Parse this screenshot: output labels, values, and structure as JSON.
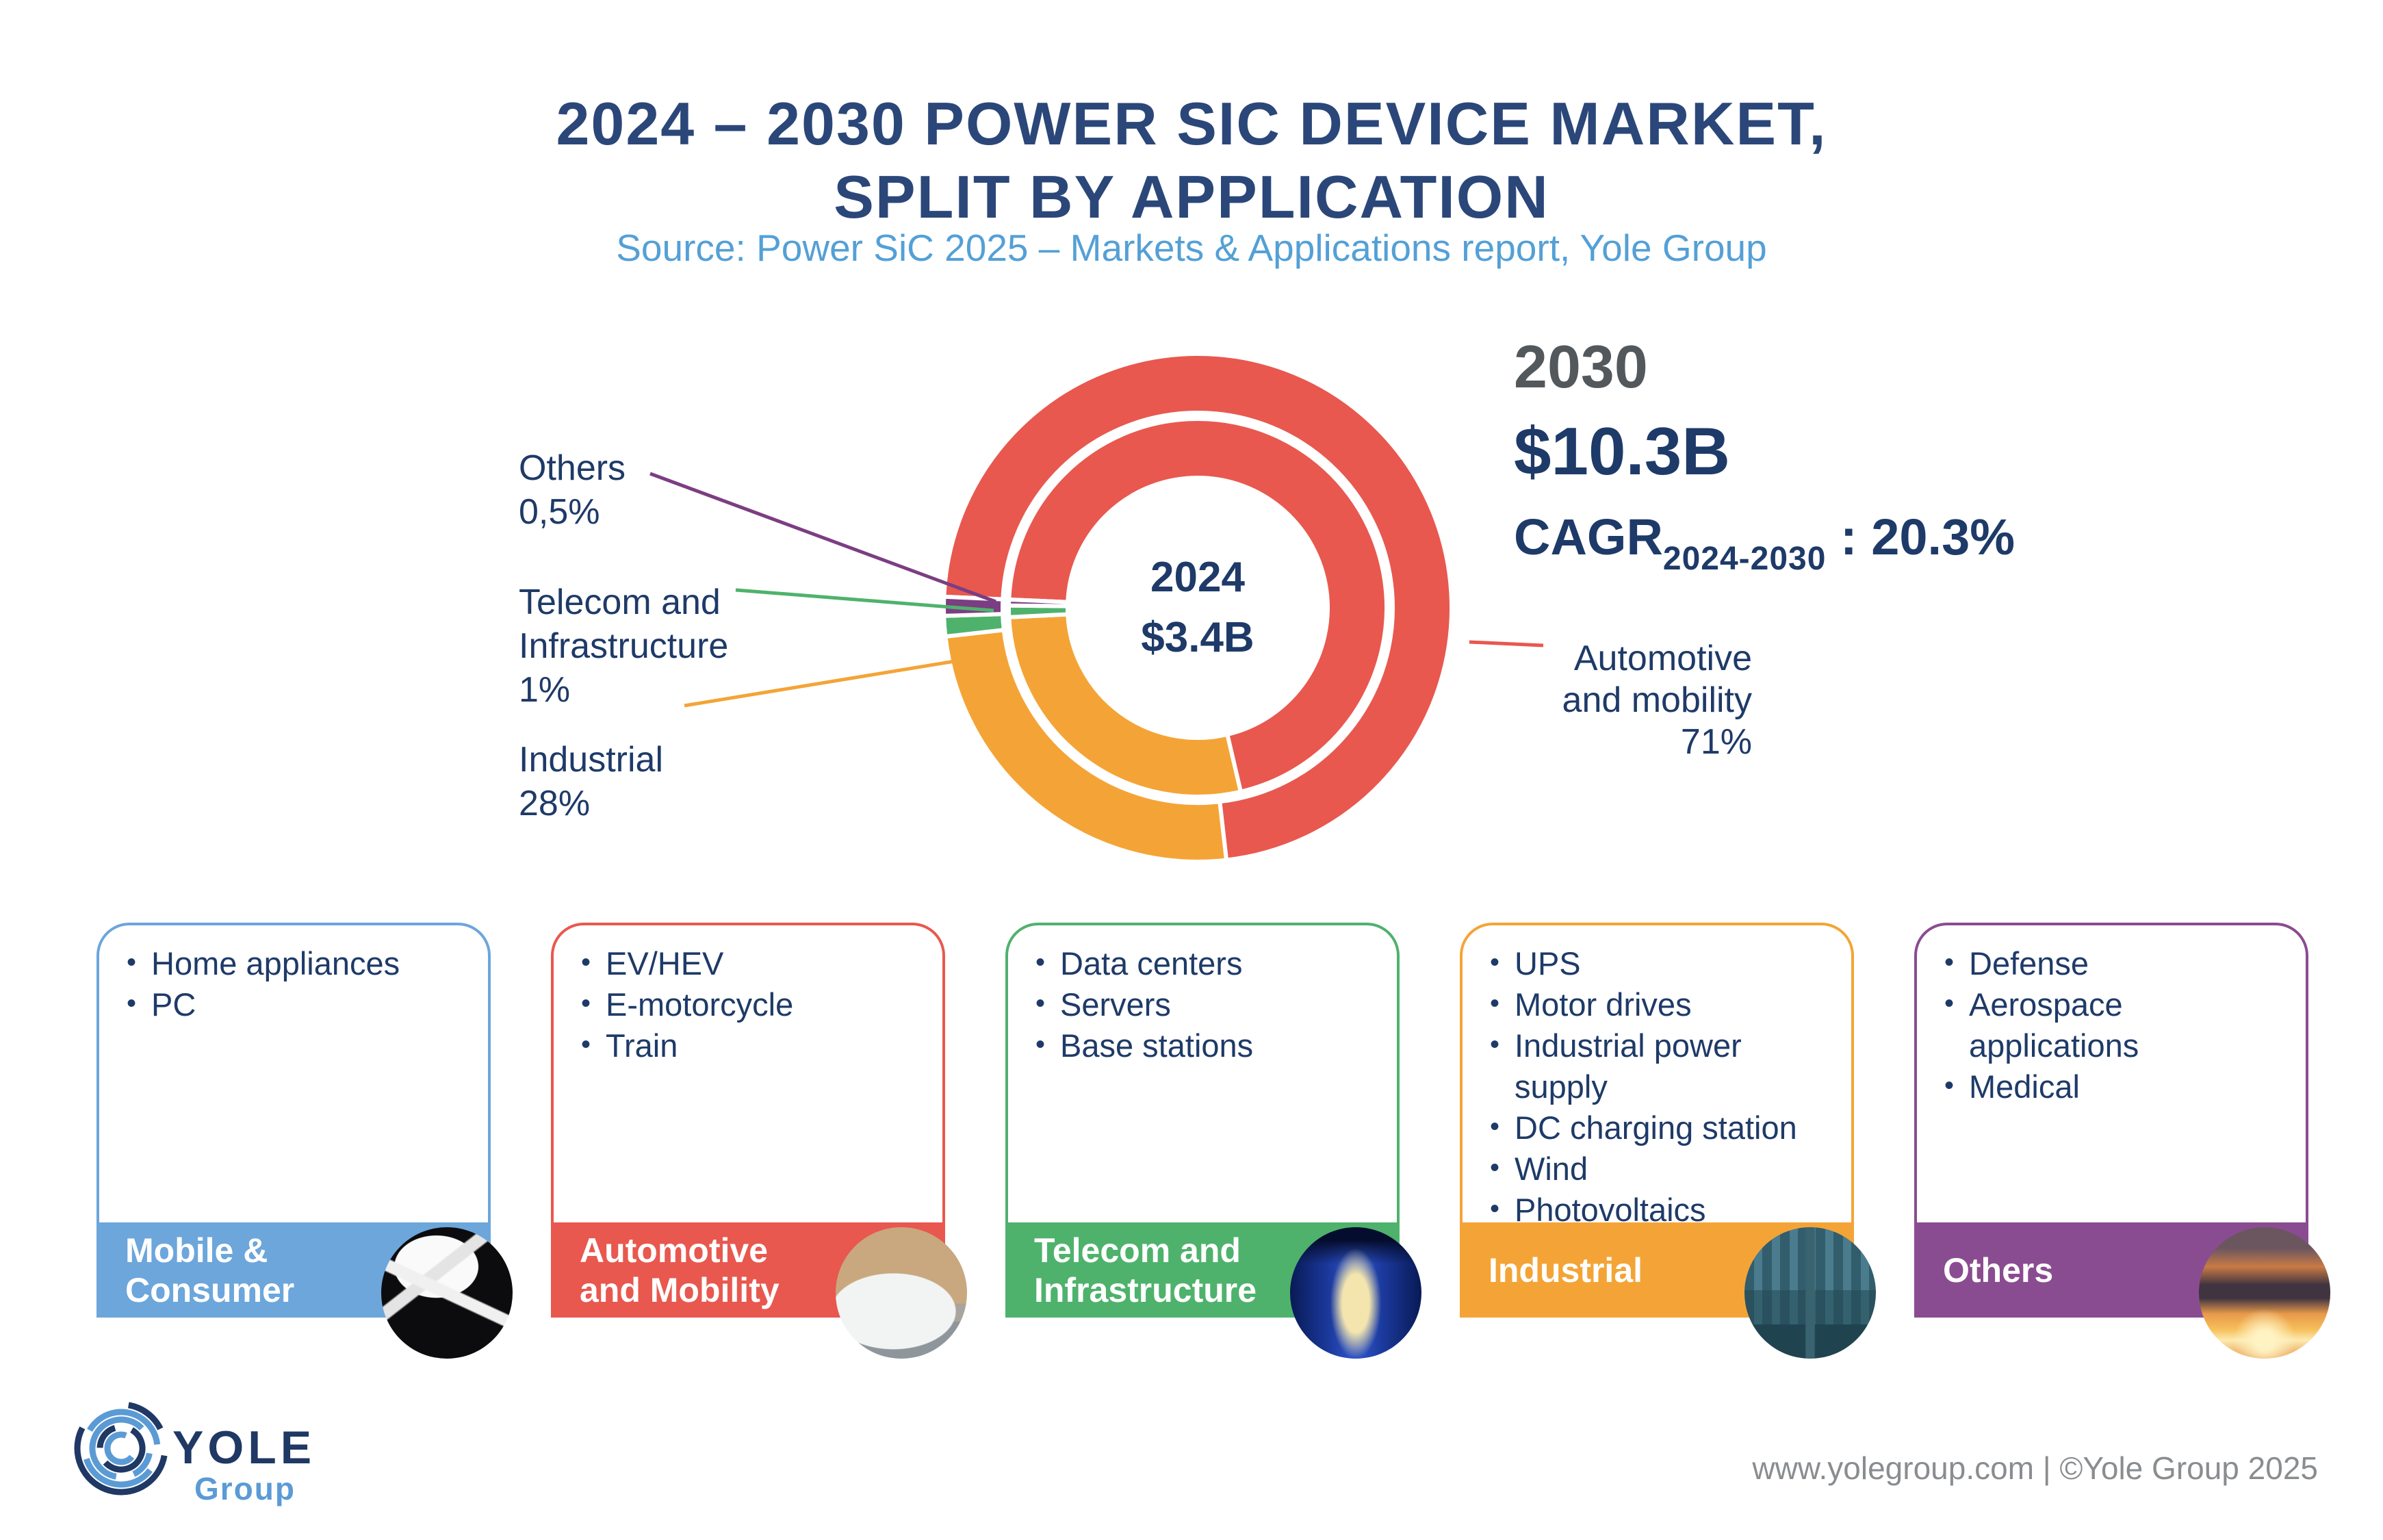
{
  "header": {
    "title": "2024 – 2030 POWER SIC DEVICE MARKET,\nSPLIT BY APPLICATION",
    "subtitle": "Source: Power SiC 2025 – Markets & Applications report, Yole Group"
  },
  "chart_data": {
    "type": "pie",
    "variant": "double_ring_donut",
    "clockwise": true,
    "start_angle_deg": 272.5,
    "categories": [
      "Automotive and mobility",
      "Industrial",
      "Telecom and Infrastructure",
      "Others"
    ],
    "segment_colors": [
      "#E8584F",
      "#F4A436",
      "#4FB26C",
      "#7B3E82"
    ],
    "rings": [
      {
        "id": "outer",
        "year": "2030",
        "total": "$10.3B",
        "values_pct": [
          72.5,
          25.0,
          1.3,
          1.2
        ],
        "note": "2030 split not labeled in figure; estimated from arc lengths"
      },
      {
        "id": "inner",
        "year": "2024",
        "total": "$3.4B",
        "values_pct": [
          71,
          28,
          1,
          0.5
        ]
      }
    ],
    "cagr": "20.3%",
    "legend_position": "callout-labels"
  },
  "center_label": {
    "year": "2024",
    "value": "$3.4B"
  },
  "stats": {
    "year": "2030",
    "value": "$10.3B",
    "cagr_label": "CAGR",
    "cagr_subscript": "2024-2030",
    "cagr_separator": " : ",
    "cagr_value": "20.3%"
  },
  "callouts": {
    "others": "Others\n0,5%",
    "telecom": "Telecom and\nInfrastructure\n1%",
    "industrial": "Industrial\n28%",
    "automotive": "Automotive\nand mobility\n71%"
  },
  "cards": [
    {
      "id": "mobile-consumer",
      "title": "Mobile &\nConsumer",
      "color": "#6CA6DB",
      "items": [
        "Home appliances",
        "PC"
      ],
      "photo": "phone-charger-photo"
    },
    {
      "id": "automotive-mobility",
      "title": "Automotive\nand Mobility",
      "color": "#E8584F",
      "items": [
        "EV/HEV",
        "E-motorcycle",
        "Train"
      ],
      "photo": "ev-charging-photo"
    },
    {
      "id": "telecom-infrastructure",
      "title": "Telecom and\nInfrastructure",
      "color": "#4FB26C",
      "items": [
        "Data centers",
        "Servers",
        "Base stations"
      ],
      "photo": "data-center-photo"
    },
    {
      "id": "industrial",
      "title": "Industrial",
      "color": "#F4A436",
      "items": [
        "UPS",
        "Motor drives",
        "Industrial power supply",
        "DC charging station",
        "Wind",
        "Photovoltaics"
      ],
      "photo": "industrial-plant-photo"
    },
    {
      "id": "others",
      "title": "Others",
      "color": "#8A4C90",
      "items": [
        "Defense",
        "Aerospace applications",
        "Medical"
      ],
      "photo": "fighter-jets-photo"
    }
  ],
  "footer": {
    "logo_main": "YOLE",
    "logo_sub": "Group",
    "credit": "www.yolegroup.com | ©Yole Group 2025"
  }
}
